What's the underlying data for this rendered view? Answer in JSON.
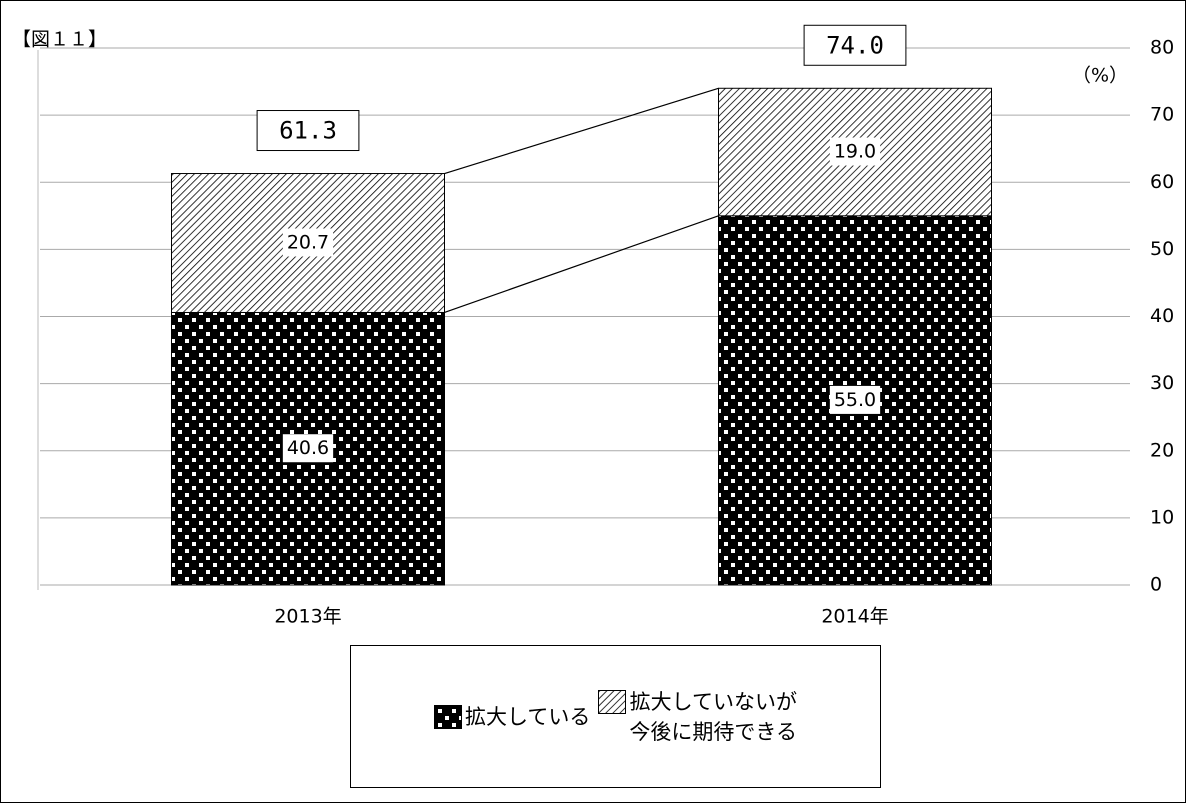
{
  "chart_data": {
    "type": "stacked_bar",
    "title": "【図１１】",
    "y_label": "（%）",
    "categories": [
      "2013年",
      "2014年"
    ],
    "series": [
      {
        "name": "拡大している",
        "color": "#000000",
        "pattern": "dots",
        "values": [
          40.6,
          55.0
        ],
        "value_labels": [
          "40.6",
          "55.0"
        ]
      },
      {
        "name": "拡大していないが\n今後に期待できる",
        "color": "#000000",
        "pattern": "hatch",
        "values": [
          20.7,
          19.0
        ],
        "value_labels": [
          "20.7",
          "19.0"
        ]
      }
    ],
    "totals": {
      "values": [
        61.3,
        74.0
      ],
      "value_labels": [
        "61.3",
        "74.0"
      ]
    },
    "ylim": [
      0,
      80
    ],
    "yticks": [
      0,
      10,
      20,
      30,
      40,
      50,
      60,
      70,
      80
    ],
    "grid": true
  }
}
